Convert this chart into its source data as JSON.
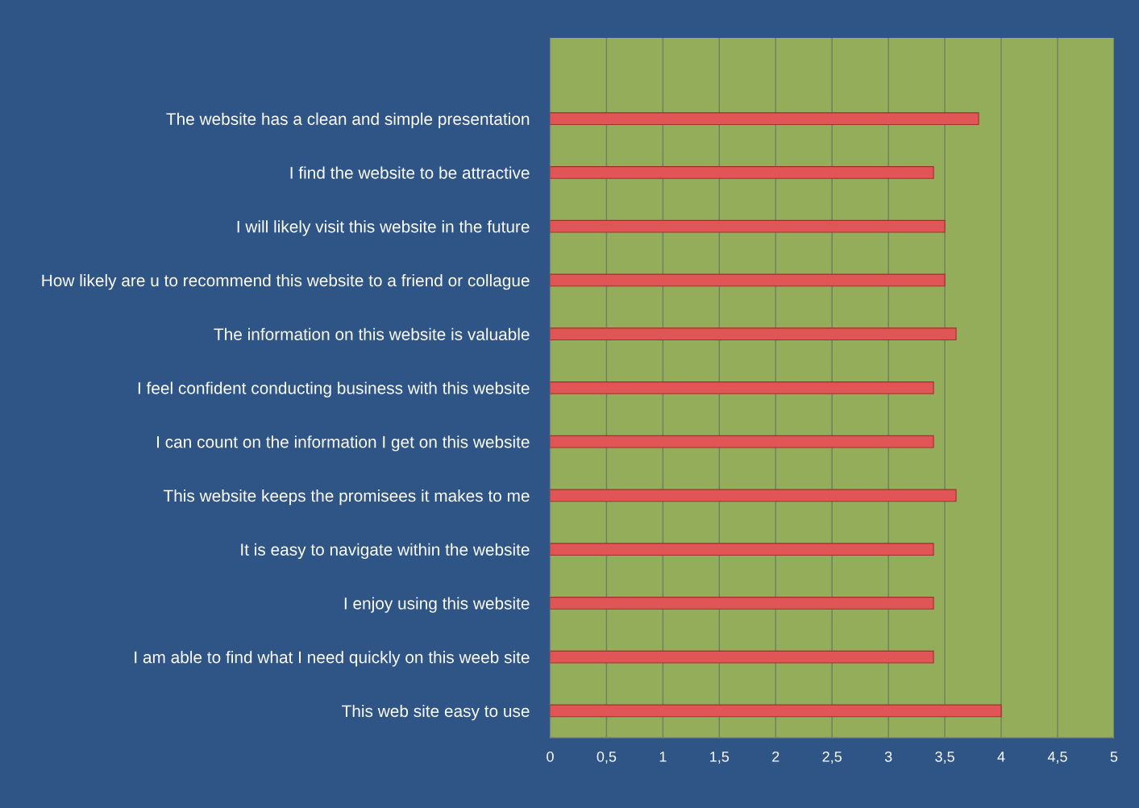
{
  "chart_data": {
    "type": "bar",
    "orientation": "horizontal",
    "categories": [
      null,
      "The website has a clean and simple presentation",
      "I find the website to be attractive",
      "I will likely visit this website in the future",
      "How likely are u to recommend this website to a friend or collague",
      "The information on this website is valuable",
      "I feel confident conducting business with this website",
      "I can count on the information I get on this website",
      "This website keeps the promisees it makes to me",
      "It is easy to navigate within the website",
      "I enjoy using this website",
      "I am able to find what I need quickly on this weeb site",
      "This web site easy to use"
    ],
    "values": [
      null,
      3.8,
      3.4,
      3.5,
      3.5,
      3.6,
      3.4,
      3.4,
      3.6,
      3.4,
      3.4,
      3.4,
      4.0
    ],
    "color": "#e05555",
    "xlim": [
      0,
      5
    ],
    "xticks": [
      0,
      {
        "value": 0.5,
        "label": "0,5"
      },
      1,
      {
        "value": 1.5,
        "label": "1,5"
      },
      2,
      {
        "value": 2.5,
        "label": "2,5"
      },
      3,
      {
        "value": 3.5,
        "label": "3,5"
      },
      4,
      {
        "value": 4.5,
        "label": "4,5"
      },
      5
    ],
    "grid": "x"
  }
}
